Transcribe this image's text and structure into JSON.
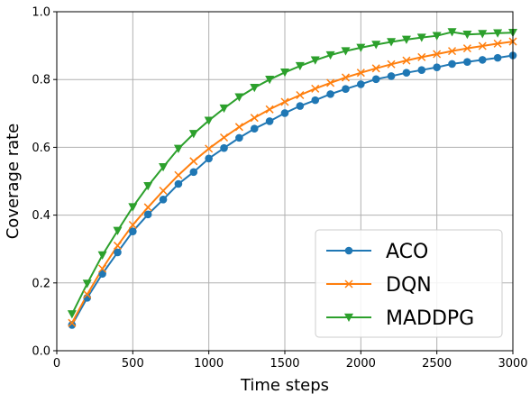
{
  "chart_data": {
    "type": "line",
    "title": "",
    "xlabel": "Time steps",
    "ylabel": "Coverage rate",
    "xlim": [
      0,
      3000
    ],
    "ylim": [
      0,
      1.0
    ],
    "xticks": [
      "0",
      "500",
      "1000",
      "1500",
      "2000",
      "2500",
      "3000"
    ],
    "yticks": [
      "0.0",
      "0.2",
      "0.4",
      "0.6",
      "0.8",
      "1.0"
    ],
    "grid": true,
    "legend_position": "bottom-right",
    "x": [
      100,
      200,
      300,
      400,
      500,
      600,
      700,
      800,
      900,
      1000,
      1100,
      1200,
      1300,
      1400,
      1500,
      1600,
      1700,
      1800,
      1900,
      2000,
      2100,
      2200,
      2300,
      2400,
      2500,
      2600,
      2700,
      2800,
      2900,
      3000
    ],
    "series": [
      {
        "name": "ACO",
        "color": "#1f77b4",
        "marker": "circle",
        "values": [
          0.076,
          0.156,
          0.227,
          0.29,
          0.352,
          0.402,
          0.446,
          0.492,
          0.527,
          0.567,
          0.598,
          0.628,
          0.655,
          0.677,
          0.701,
          0.722,
          0.739,
          0.757,
          0.772,
          0.786,
          0.801,
          0.81,
          0.82,
          0.828,
          0.836,
          0.846,
          0.852,
          0.858,
          0.864,
          0.871
        ]
      },
      {
        "name": "DQN",
        "color": "#ff7f0e",
        "marker": "x",
        "values": [
          0.082,
          0.166,
          0.242,
          0.31,
          0.371,
          0.423,
          0.472,
          0.518,
          0.559,
          0.596,
          0.629,
          0.66,
          0.687,
          0.712,
          0.734,
          0.754,
          0.773,
          0.79,
          0.806,
          0.82,
          0.833,
          0.845,
          0.856,
          0.866,
          0.875,
          0.884,
          0.892,
          0.899,
          0.906,
          0.912
        ]
      },
      {
        "name": "MADDPG",
        "color": "#2ca02c",
        "marker": "triangle-down",
        "values": [
          0.108,
          0.198,
          0.282,
          0.354,
          0.424,
          0.486,
          0.542,
          0.596,
          0.64,
          0.679,
          0.715,
          0.748,
          0.776,
          0.8,
          0.821,
          0.84,
          0.857,
          0.872,
          0.884,
          0.894,
          0.903,
          0.911,
          0.918,
          0.924,
          0.929,
          0.94,
          0.933,
          0.935,
          0.937,
          0.938
        ]
      }
    ]
  }
}
